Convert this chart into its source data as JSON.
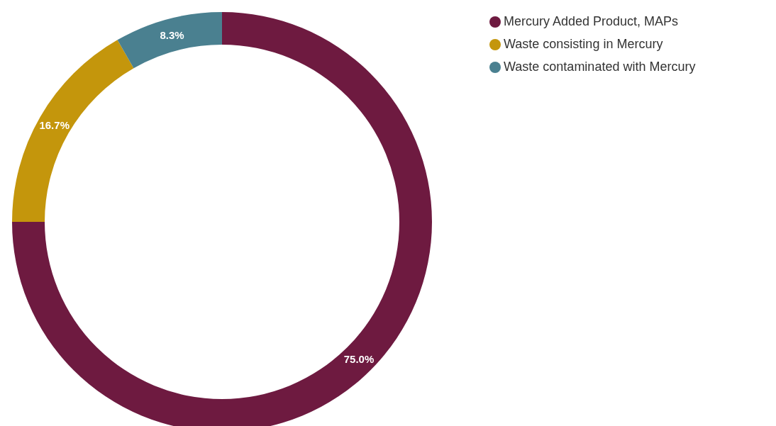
{
  "chart_data": {
    "type": "donut",
    "categories": [
      "Mercury Added Product, MAPs",
      "Waste consisting in Mercury",
      "Waste contaminated with Mercury"
    ],
    "values": [
      75.0,
      16.7,
      8.3
    ],
    "colors": [
      "#6e1a40",
      "#c4960c",
      "#4a8090"
    ],
    "value_labels": [
      "75.0%",
      "16.7%",
      "8.3%"
    ],
    "legend": "top right"
  }
}
